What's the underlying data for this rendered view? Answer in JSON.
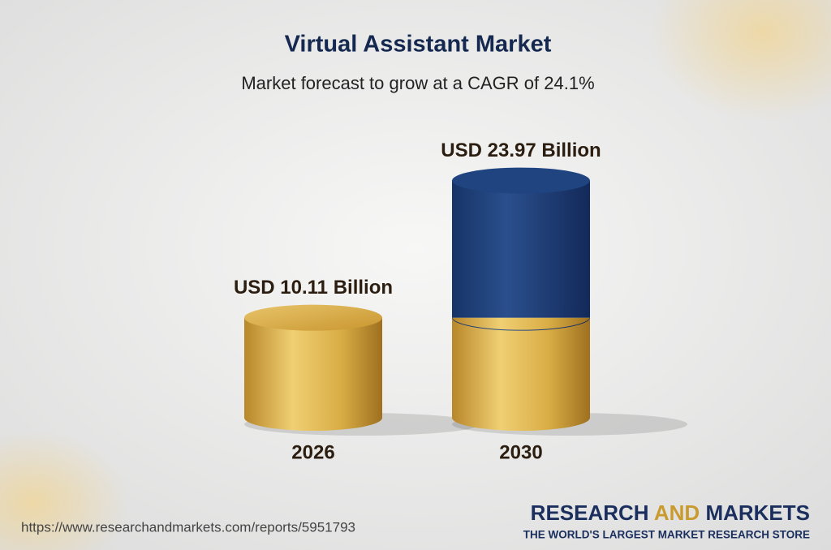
{
  "chart_data": {
    "type": "cylinder",
    "title": "Virtual Assistant Market",
    "subtitle": "Market forecast to grow at a CAGR of 24.1%",
    "categories": [
      "2026",
      "2030"
    ],
    "values": [
      10.11,
      23.97
    ],
    "value_labels": [
      "USD 10.11 Billion",
      "USD 23.97 Billion"
    ],
    "color": "#d1a236",
    "growth_color": "#1f4480"
  },
  "footer": {
    "url": "https://www.researchandmarkets.com/reports/5951793",
    "brand": [
      "RESEARCH",
      "AND",
      "MARKETS"
    ],
    "tagline": "THE WORLD'S LARGEST MARKET RESEARCH STORE"
  }
}
